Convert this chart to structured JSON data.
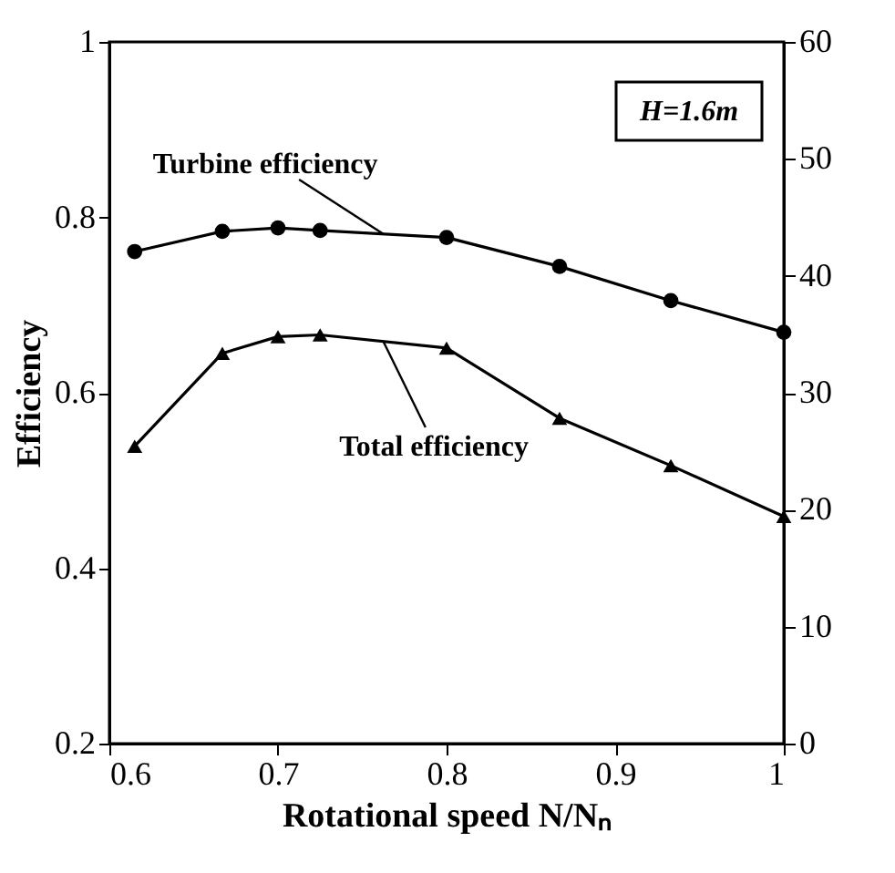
{
  "chart_data": {
    "type": "line",
    "xlabel": "Rotational speed N/Nₙ",
    "ylabel": "Efficiency",
    "x": [
      0.615,
      0.667,
      0.7,
      0.725,
      0.8,
      0.867,
      0.933,
      1.0
    ],
    "series": [
      {
        "name": "Turbine efficiency",
        "color": "#000000",
        "marker": "circle",
        "values": [
          0.761,
          0.784,
          0.788,
          0.785,
          0.777,
          0.744,
          0.705,
          0.669
        ]
      },
      {
        "name": "Total efficiency",
        "color": "#000000",
        "marker": "triangle",
        "values": [
          0.539,
          0.645,
          0.664,
          0.666,
          0.651,
          0.571,
          0.517,
          0.459
        ]
      }
    ],
    "xlim": [
      0.6,
      1.0
    ],
    "xticks": [
      0.6,
      0.7,
      0.8,
      0.9,
      1
    ],
    "ylim": [
      0.2,
      1.0
    ],
    "yticks": [
      0.2,
      0.4,
      0.6,
      0.8,
      1
    ],
    "y2lim": [
      0,
      60
    ],
    "y2ticks": [
      0,
      10,
      20,
      30,
      40,
      50,
      60
    ],
    "annotations": [
      "H=1.6m"
    ],
    "line_style": "solid",
    "grid": false
  }
}
